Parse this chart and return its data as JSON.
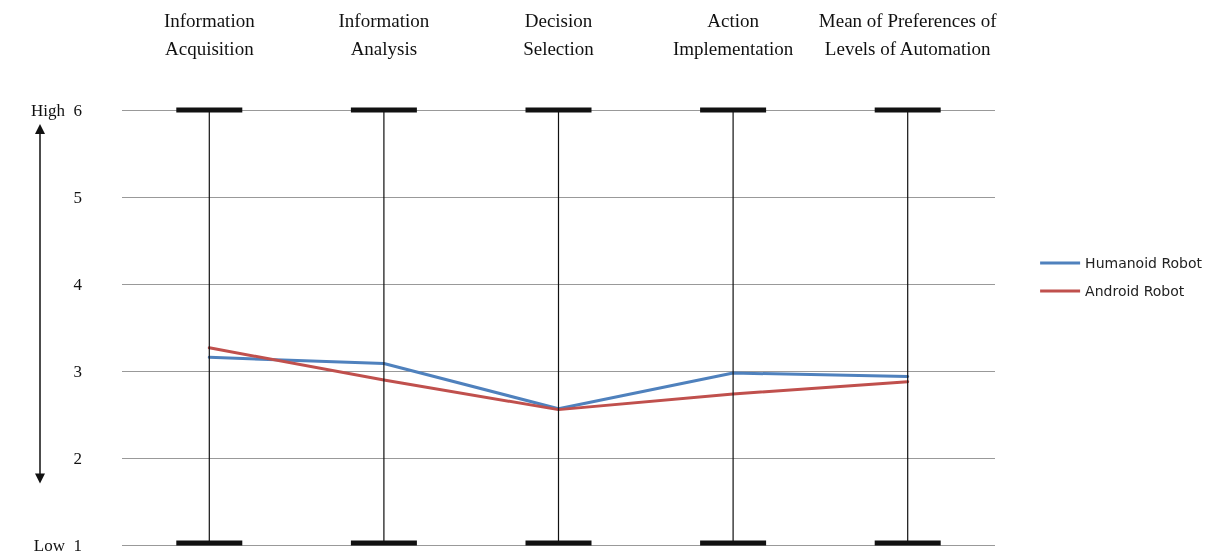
{
  "chart_data": {
    "type": "line",
    "categories": [
      "Information Acquisition",
      "Information Analysis",
      "Decision Selection",
      "Action Implementation",
      "Mean of Preferences of Levels of Automation"
    ],
    "series": [
      {
        "name": "Humanoid Robot",
        "color": "#4f81bd",
        "values": [
          3.16,
          3.09,
          2.57,
          2.98,
          2.94
        ]
      },
      {
        "name": "Android Robot",
        "color": "#c0504d",
        "values": [
          3.27,
          2.9,
          2.56,
          2.74,
          2.88
        ]
      }
    ],
    "ylim": [
      1,
      6
    ],
    "yticks": [
      {
        "value": 1,
        "label": "Low  1"
      },
      2,
      3,
      4,
      5,
      {
        "value": 6,
        "label": "High  6"
      }
    ],
    "grid": true,
    "legend": "right",
    "marker": "none",
    "line_style": "solid"
  }
}
